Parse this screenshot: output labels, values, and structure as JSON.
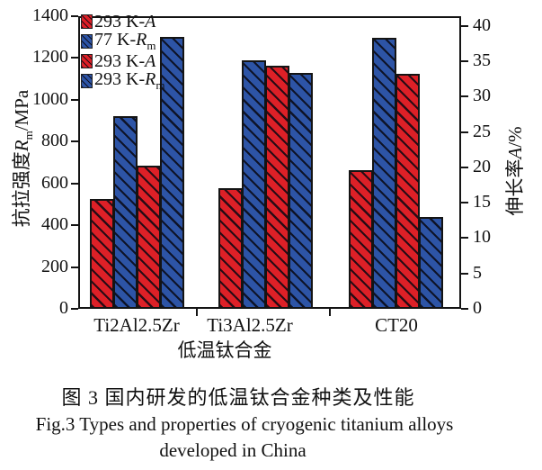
{
  "figure": {
    "caption_cn": "图 3  国内研发的低温钛合金种类及性能",
    "caption_en": "Fig.3 Types and properties of cryogenic titanium alloys",
    "caption_en2": "developed in China"
  },
  "chart_data": {
    "type": "bar",
    "title": "",
    "categories": [
      "Ti2Al2.5Zr",
      "Ti3Al2.5Zr",
      "CT20"
    ],
    "xlabel": "低温钛合金",
    "ylabel_left": "抗拉强度Rm/MPa",
    "ylabel_left_parts": {
      "cjk": "抗拉强度",
      "sym": "R",
      "sub": "m",
      "unit": "/MPa"
    },
    "ylabel_right": "伸长率A/%",
    "ylabel_right_parts": {
      "cjk": "伸长率",
      "sym": "A",
      "sub": "",
      "unit": "/%"
    },
    "axis_left": {
      "min": 0,
      "max": 1400,
      "step": 200,
      "ticks": [
        0,
        200,
        400,
        600,
        800,
        1000,
        1200,
        1400
      ]
    },
    "axis_right": {
      "min": 0,
      "max": 40,
      "step": 5,
      "ticks": [
        0,
        5,
        10,
        15,
        20,
        25,
        30,
        35,
        40
      ]
    },
    "grid": false,
    "legend_position": "top-left-inside",
    "colors": {
      "red": "#dd2027",
      "blue": "#2d54a6",
      "hatch_line": "#141414",
      "background": "#ffffff"
    },
    "series": [
      {
        "name": "293 K-A",
        "legend": {
          "prefix": "293 K-",
          "sym": "A",
          "sub": ""
        },
        "color_key": "red",
        "axis": "right",
        "unit": "%",
        "values": [
          15.5,
          17.0,
          19.6
        ]
      },
      {
        "name": "77 K-Rm",
        "legend": {
          "prefix": "77 K-",
          "sym": "R",
          "sub": "m"
        },
        "color_key": "blue",
        "axis": "left",
        "unit": "MPa",
        "values": [
          920,
          1190,
          1295
        ]
      },
      {
        "name": "293 K-A",
        "legend": {
          "prefix": "293 K-",
          "sym": "A",
          "sub": ""
        },
        "color_key": "red",
        "axis": "right",
        "unit": "%",
        "values": [
          20.2,
          34.4,
          33.2
        ]
      },
      {
        "name": "293 K-Rm",
        "legend": {
          "prefix": "293 K-",
          "sym": "R",
          "sub": "m"
        },
        "color_key": "blue",
        "axis": "left",
        "unit": "MPa",
        "values": [
          1300,
          1130,
          440
        ]
      }
    ]
  }
}
